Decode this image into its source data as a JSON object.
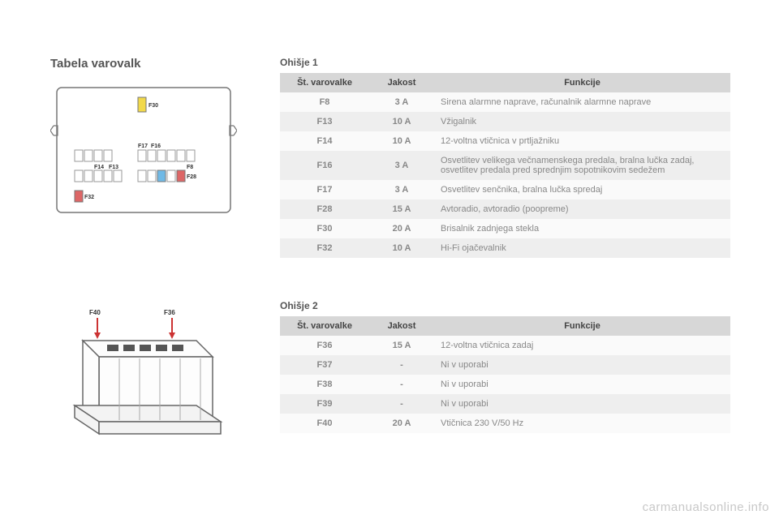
{
  "title": "Tabela varovalk",
  "box1_heading": "Ohišje 1",
  "box2_heading": "Ohišje 2",
  "columns": [
    "Št. varovalke",
    "Jakost",
    "Funkcije"
  ],
  "table1": [
    [
      "F8",
      "3 A",
      "Sirena alarmne naprave, računalnik alarmne naprave"
    ],
    [
      "F13",
      "10 A",
      "Vžigalnik"
    ],
    [
      "F14",
      "10 A",
      "12-voltna vtičnica v prtljažniku"
    ],
    [
      "F16",
      "3 A",
      "Osvetlitev velikega večnamenskega predala, bralna lučka zadaj, osvetlitev predala pred sprednjim sopotnikovim sedežem"
    ],
    [
      "F17",
      "3 A",
      "Osvetlitev senčnika, bralna lučka spredaj"
    ],
    [
      "F28",
      "15 A",
      "Avtoradio, avtoradio (poopreme)"
    ],
    [
      "F30",
      "20 A",
      "Brisalnik zadnjega stekla"
    ],
    [
      "F32",
      "10 A",
      "Hi-Fi ojačevalnik"
    ]
  ],
  "table2": [
    [
      "F36",
      "15 A",
      "12-voltna vtičnica zadaj"
    ],
    [
      "F37",
      "-",
      "Ni v uporabi"
    ],
    [
      "F38",
      "-",
      "Ni v uporabi"
    ],
    [
      "F39",
      "-",
      "Ni v uporabi"
    ],
    [
      "F40",
      "20 A",
      "Vtičnica 230 V/50 Hz"
    ]
  ],
  "col_widths": [
    "110px",
    "80px",
    "365px"
  ],
  "colors": {
    "header_bg": "#d7d7d7",
    "row_odd_bg": "#fafafa",
    "row_even_bg": "#eeeeee",
    "text": "#4a4a4a",
    "muted": "#888888",
    "watermark": "#c8c8c8"
  },
  "diagram1_labels": {
    "F30": "F30",
    "F17": "F17",
    "F16": "F16",
    "F14": "F14",
    "F13": "F13",
    "F8": "F8",
    "F28": "F28",
    "F32": "F32"
  },
  "diagram2_labels": {
    "F40": "F40",
    "F36": "F36"
  },
  "watermark": "carmanualsonline.info"
}
